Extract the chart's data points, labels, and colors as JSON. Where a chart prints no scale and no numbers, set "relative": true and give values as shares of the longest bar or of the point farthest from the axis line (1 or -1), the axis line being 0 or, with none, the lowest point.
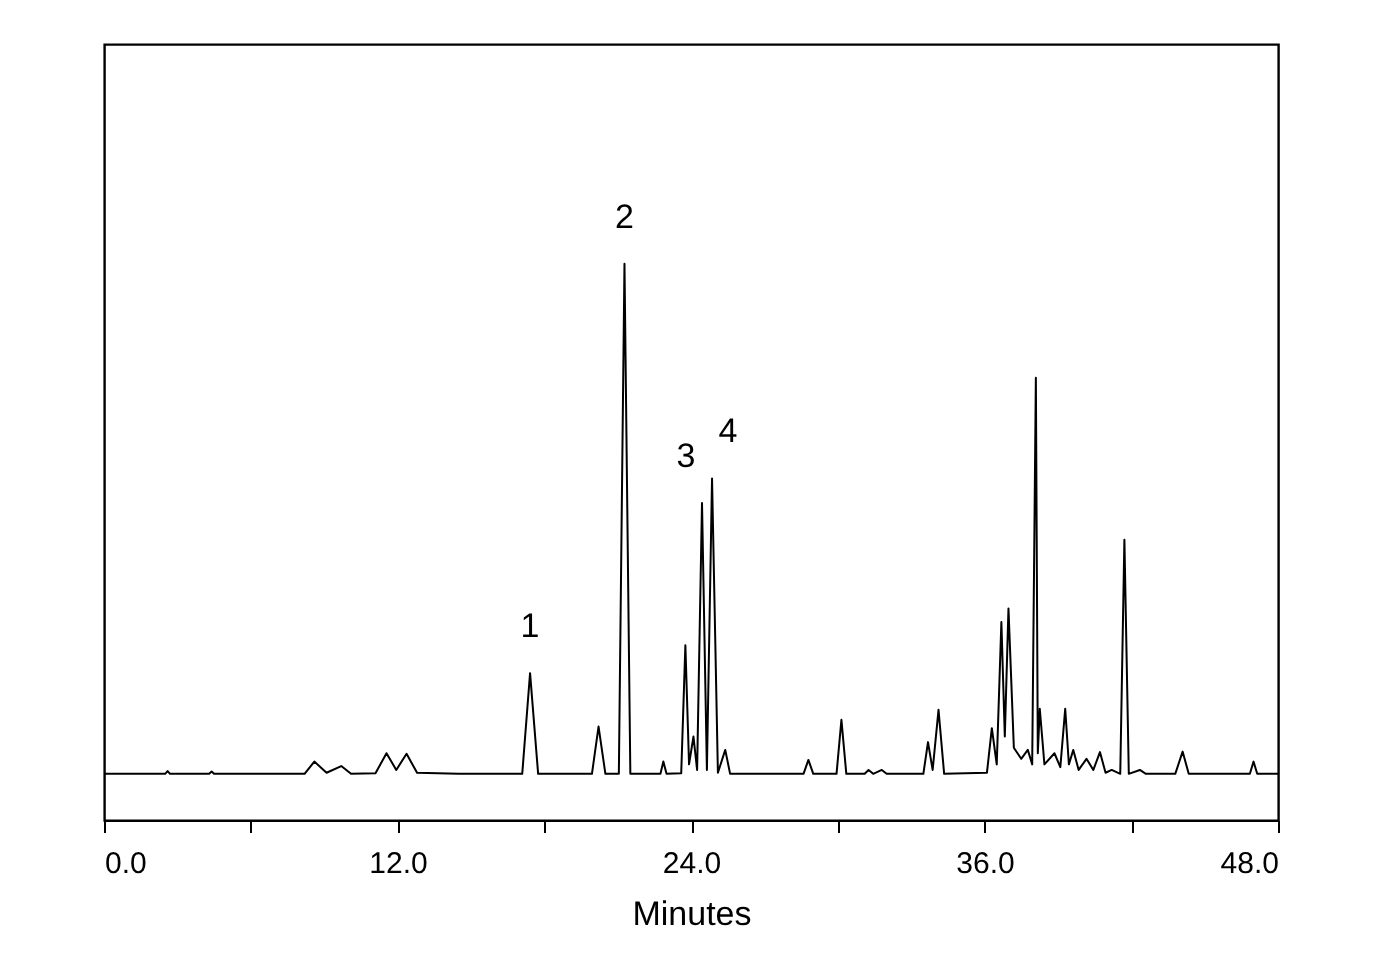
{
  "chart_data": {
    "type": "line",
    "relative": true,
    "xlabel": "Minutes",
    "xlim": [
      0,
      48
    ],
    "xticks": [
      {
        "value": 0,
        "label": "0.0"
      },
      {
        "value": 6,
        "label": null
      },
      {
        "value": 12,
        "label": "12.0"
      },
      {
        "value": 18,
        "label": null
      },
      {
        "value": 24,
        "label": "24.0"
      },
      {
        "value": 30,
        "label": null
      },
      {
        "value": 36,
        "label": "36.0"
      },
      {
        "value": 42,
        "label": null
      },
      {
        "value": 48,
        "label": "48.0"
      }
    ],
    "grid": false,
    "marker": "none",
    "line_style": "solid",
    "legend": false,
    "annotations": [
      {
        "text": "1",
        "x": 17.42,
        "y": 0.264
      },
      {
        "text": "2",
        "x": 21.28,
        "y": 1.0
      },
      {
        "text": "3",
        "x": 24.45,
        "y": 0.57
      },
      {
        "text": "4",
        "x": 24.86,
        "y": 0.614
      }
    ],
    "series": [
      {
        "color": "#000000",
        "x": [
          0,
          2.5,
          2.6,
          2.7,
          4.3,
          4.4,
          4.5,
          8.2,
          8.6,
          9.1,
          9.7,
          10.1,
          11.1,
          11.55,
          11.95,
          12.37,
          12.8,
          14.5,
          17.1,
          17.42,
          17.75,
          19.95,
          20.22,
          20.5,
          21.05,
          21.28,
          21.52,
          22.75,
          22.87,
          23.0,
          23.6,
          23.77,
          23.92,
          24.1,
          24.25,
          24.45,
          24.65,
          24.86,
          25.1,
          25.4,
          25.6,
          28.6,
          28.8,
          29.0,
          29.95,
          30.15,
          30.35,
          31.1,
          31.26,
          31.45,
          31.8,
          32.0,
          33.5,
          33.69,
          33.88,
          34.12,
          34.35,
          36.1,
          36.3,
          36.5,
          36.69,
          36.83,
          36.98,
          37.2,
          37.5,
          37.77,
          37.95,
          38.1,
          38.18,
          38.26,
          38.45,
          38.86,
          39.1,
          39.3,
          39.45,
          39.63,
          39.85,
          40.17,
          40.45,
          40.72,
          40.95,
          41.2,
          41.55,
          41.72,
          41.9,
          42.35,
          42.6,
          43.8,
          44.1,
          44.35,
          46.85,
          47.0,
          47.15,
          48
        ],
        "values": [
          0.083,
          0.083,
          0.088,
          0.083,
          0.083,
          0.087,
          0.083,
          0.083,
          0.105,
          0.085,
          0.097,
          0.083,
          0.084,
          0.12,
          0.09,
          0.119,
          0.085,
          0.083,
          0.083,
          0.264,
          0.083,
          0.083,
          0.168,
          0.083,
          0.083,
          1.0,
          0.083,
          0.083,
          0.105,
          0.083,
          0.084,
          0.314,
          0.1,
          0.15,
          0.09,
          0.57,
          0.09,
          0.614,
          0.085,
          0.126,
          0.083,
          0.083,
          0.108,
          0.083,
          0.083,
          0.18,
          0.083,
          0.083,
          0.09,
          0.083,
          0.09,
          0.083,
          0.083,
          0.14,
          0.09,
          0.198,
          0.083,
          0.085,
          0.165,
          0.1,
          0.356,
          0.15,
          0.38,
          0.13,
          0.11,
          0.126,
          0.1,
          0.795,
          0.12,
          0.2,
          0.1,
          0.12,
          0.095,
          0.2,
          0.1,
          0.126,
          0.09,
          0.11,
          0.09,
          0.122,
          0.085,
          0.09,
          0.083,
          0.504,
          0.083,
          0.09,
          0.083,
          0.083,
          0.123,
          0.083,
          0.083,
          0.105,
          0.083,
          0.083
        ]
      }
    ]
  }
}
